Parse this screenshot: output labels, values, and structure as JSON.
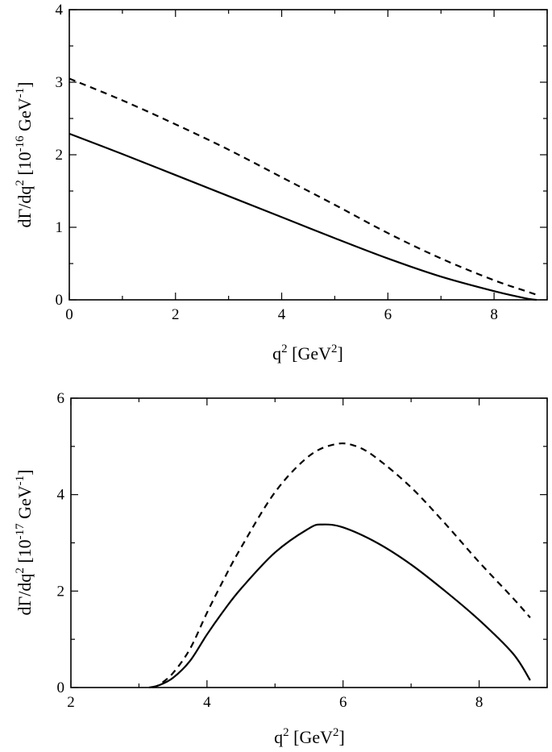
{
  "chart_data": [
    {
      "type": "line",
      "xlabel": {
        "base": "q",
        "sup": "2",
        "unit_open": " [GeV",
        "unit_sup": "2",
        "unit_close": "]"
      },
      "ylabel": {
        "main": "dΓ/dq",
        "sup1": "2",
        "mid": " [10",
        "sup2": "-16",
        "unit": "  GeV",
        "sup3": "-1",
        "close": "]"
      },
      "xlim": [
        0,
        9
      ],
      "ylim": [
        0,
        4
      ],
      "xticks": [
        0,
        2,
        4,
        6,
        8
      ],
      "yticks": [
        0,
        1,
        2,
        3,
        4
      ],
      "grid": false,
      "series": [
        {
          "style": "solid",
          "x": [
            0,
            1,
            2,
            3,
            4,
            5,
            6,
            7,
            8,
            8.6,
            8.8
          ],
          "y": [
            2.29,
            2.01,
            1.72,
            1.43,
            1.14,
            0.85,
            0.57,
            0.32,
            0.12,
            0.02,
            0.0
          ]
        },
        {
          "style": "dashed",
          "x": [
            0,
            1,
            2,
            3,
            4,
            5,
            6,
            7,
            8,
            8.6,
            8.8
          ],
          "y": [
            3.05,
            2.75,
            2.42,
            2.07,
            1.69,
            1.31,
            0.92,
            0.57,
            0.27,
            0.12,
            0.07
          ]
        }
      ]
    },
    {
      "type": "line",
      "xlabel": {
        "base": "q",
        "sup": "2",
        "unit_open": " [GeV",
        "unit_sup": "2",
        "unit_close": "]"
      },
      "ylabel": {
        "main": "dΓ/dq",
        "sup1": "2",
        "mid": " [10",
        "sup2": "-17",
        "unit": " GeV",
        "sup3": "-1",
        "close": "]"
      },
      "xlim": [
        2,
        9
      ],
      "ylim": [
        0,
        6
      ],
      "xticks": [
        2,
        4,
        6,
        8
      ],
      "yticks": [
        0,
        2,
        4,
        6
      ],
      "grid": false,
      "series": [
        {
          "style": "solid",
          "x": [
            3.15,
            3.3,
            3.5,
            3.75,
            4.0,
            4.25,
            4.5,
            5.0,
            5.5,
            5.7,
            6.0,
            6.5,
            7.0,
            7.5,
            8.0,
            8.5,
            8.75
          ],
          "y": [
            0.0,
            0.05,
            0.2,
            0.55,
            1.1,
            1.6,
            2.05,
            2.8,
            3.3,
            3.38,
            3.32,
            3.0,
            2.55,
            2.0,
            1.4,
            0.7,
            0.15
          ]
        },
        {
          "style": "dashed",
          "x": [
            3.2,
            3.3,
            3.5,
            3.75,
            4.0,
            4.25,
            4.5,
            5.0,
            5.5,
            5.9,
            6.2,
            6.5,
            7.0,
            7.5,
            8.0,
            8.5,
            8.75
          ],
          "y": [
            0.0,
            0.06,
            0.3,
            0.8,
            1.55,
            2.25,
            2.9,
            4.05,
            4.8,
            5.05,
            5.0,
            4.75,
            4.15,
            3.4,
            2.6,
            1.85,
            1.45
          ]
        }
      ]
    }
  ]
}
